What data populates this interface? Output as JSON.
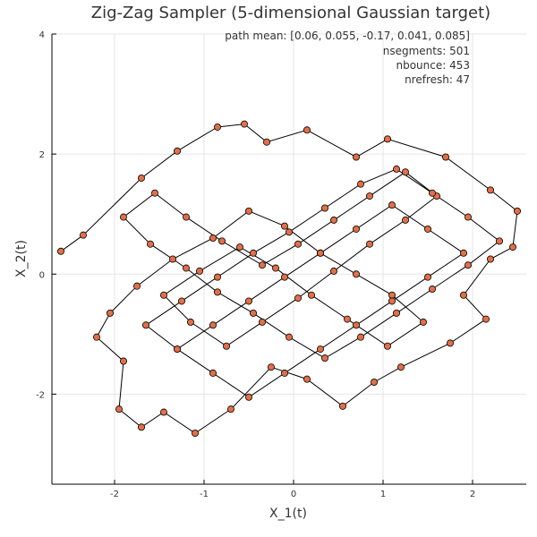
{
  "chart_data": {
    "type": "line",
    "title": "Zig-Zag Sampler (5-dimensional Gaussian target)",
    "xlabel": "X_1(t)",
    "ylabel": "X_2(t)",
    "xlim": [
      -2.7,
      2.6
    ],
    "ylim": [
      -3.5,
      4.0
    ],
    "xticks": [
      -2,
      -1,
      0,
      1,
      2
    ],
    "xtick_labels": [
      "-2",
      "-1",
      "0",
      "1",
      "2"
    ],
    "yticks": [
      -2,
      0,
      2,
      4
    ],
    "ytick_labels": [
      "-2",
      "0",
      "2",
      "4"
    ],
    "grid": true,
    "legend": "none",
    "annotations": [
      "path mean: [0.06, 0.055, -0.17, 0.041, 0.085]",
      "nsegments: 501",
      "nbounce: 453",
      "nrefresh: 47"
    ],
    "series": [
      {
        "line_color": "#000000",
        "marker_color": "#e26f46",
        "points": [
          [
            -2.6,
            0.38
          ],
          [
            -2.35,
            0.65
          ],
          [
            -1.7,
            1.6
          ],
          [
            -1.3,
            2.05
          ],
          [
            -0.85,
            2.45
          ],
          [
            -0.55,
            2.5
          ],
          [
            -0.3,
            2.2
          ],
          [
            0.15,
            2.4
          ],
          [
            0.7,
            1.95
          ],
          [
            1.05,
            2.25
          ],
          [
            1.7,
            1.95
          ],
          [
            2.2,
            1.4
          ],
          [
            2.5,
            1.05
          ],
          [
            2.45,
            0.45
          ],
          [
            2.2,
            0.25
          ],
          [
            1.9,
            -0.35
          ],
          [
            2.15,
            -0.75
          ],
          [
            1.75,
            -1.15
          ],
          [
            1.2,
            -1.55
          ],
          [
            0.9,
            -1.8
          ],
          [
            0.55,
            -2.2
          ],
          [
            0.15,
            -1.75
          ],
          [
            -0.25,
            -1.55
          ],
          [
            -0.7,
            -2.25
          ],
          [
            -1.1,
            -2.65
          ],
          [
            -1.45,
            -2.3
          ],
          [
            -1.7,
            -2.55
          ],
          [
            -1.95,
            -2.25
          ],
          [
            -1.9,
            -1.45
          ],
          [
            -2.2,
            -1.05
          ],
          [
            -2.05,
            -0.65
          ],
          [
            -1.75,
            -0.2
          ],
          [
            -1.35,
            0.25
          ],
          [
            -0.9,
            0.6
          ],
          [
            -0.5,
            1.05
          ],
          [
            -0.1,
            0.8
          ],
          [
            0.3,
            0.35
          ],
          [
            0.7,
            0.0
          ],
          [
            1.1,
            -0.35
          ],
          [
            1.45,
            -0.8
          ],
          [
            1.05,
            -1.2
          ],
          [
            0.6,
            -0.75
          ],
          [
            0.2,
            -0.35
          ],
          [
            -0.2,
            0.1
          ],
          [
            -0.6,
            0.45
          ],
          [
            -1.05,
            0.05
          ],
          [
            -1.45,
            -0.35
          ],
          [
            -1.15,
            -0.8
          ],
          [
            -0.75,
            -1.2
          ],
          [
            -0.35,
            -0.8
          ],
          [
            0.05,
            -0.4
          ],
          [
            0.45,
            0.05
          ],
          [
            0.85,
            0.5
          ],
          [
            1.25,
            0.9
          ],
          [
            1.6,
            1.3
          ],
          [
            1.25,
            1.7
          ],
          [
            0.85,
            1.3
          ],
          [
            0.45,
            0.9
          ],
          [
            0.05,
            0.5
          ],
          [
            -0.35,
            0.15
          ],
          [
            -0.8,
            0.55
          ],
          [
            -1.2,
            0.95
          ],
          [
            -1.55,
            1.35
          ],
          [
            -1.9,
            0.95
          ],
          [
            -1.6,
            0.5
          ],
          [
            -1.2,
            0.1
          ],
          [
            -0.85,
            -0.3
          ],
          [
            -0.45,
            -0.65
          ],
          [
            -0.05,
            -1.05
          ],
          [
            0.35,
            -1.4
          ],
          [
            0.75,
            -1.05
          ],
          [
            1.15,
            -0.65
          ],
          [
            1.55,
            -0.25
          ],
          [
            1.95,
            0.15
          ],
          [
            2.3,
            0.55
          ],
          [
            1.95,
            0.95
          ],
          [
            1.55,
            1.35
          ],
          [
            1.15,
            1.75
          ],
          [
            0.75,
            1.5
          ],
          [
            0.35,
            1.1
          ],
          [
            -0.05,
            0.7
          ],
          [
            -0.45,
            0.35
          ],
          [
            -0.85,
            -0.05
          ],
          [
            -1.25,
            -0.45
          ],
          [
            -1.65,
            -0.85
          ],
          [
            -1.3,
            -1.25
          ],
          [
            -0.9,
            -1.65
          ],
          [
            -0.5,
            -2.05
          ],
          [
            -0.1,
            -1.65
          ],
          [
            0.3,
            -1.25
          ],
          [
            0.7,
            -0.85
          ],
          [
            1.1,
            -0.45
          ],
          [
            1.5,
            -0.05
          ],
          [
            1.9,
            0.35
          ],
          [
            1.5,
            0.75
          ],
          [
            1.1,
            1.15
          ],
          [
            0.7,
            0.75
          ],
          [
            0.3,
            0.35
          ],
          [
            -0.1,
            -0.05
          ],
          [
            -0.5,
            -0.45
          ],
          [
            -0.9,
            -0.85
          ],
          [
            -1.3,
            -1.25
          ]
        ]
      }
    ]
  }
}
